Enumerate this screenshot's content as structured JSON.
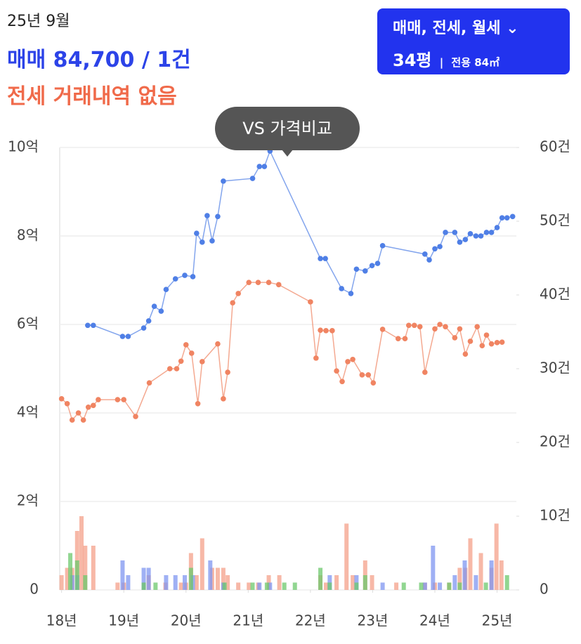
{
  "header": {
    "date": "25년 9월",
    "sale_summary": "매매 84,700 / 1건",
    "jeonse_summary": "전세 거래내역 없음"
  },
  "filter_button": {
    "types": "매매, 전세, 월세",
    "size": "34평",
    "exclusive_area": "전용 84㎡"
  },
  "tooltip": "VS 가격비교",
  "chart_data": {
    "type": "line",
    "xlim": [
      2017.97,
      2025.31
    ],
    "xticks": [
      {
        "value": 2018,
        "label": "18년"
      },
      {
        "value": 2019,
        "label": "19년"
      },
      {
        "value": 2020,
        "label": "20년"
      },
      {
        "value": 2021,
        "label": "21년"
      },
      {
        "value": 2022,
        "label": "22년"
      },
      {
        "value": 2023,
        "label": "23년"
      },
      {
        "value": 2024,
        "label": "24년"
      },
      {
        "value": 2025,
        "label": "25년"
      }
    ],
    "ylim": [
      0,
      10
    ],
    "yticks": [
      0,
      {
        "value": 2,
        "label": "2억"
      },
      {
        "value": 4,
        "label": "4억"
      },
      {
        "value": 6,
        "label": "6억"
      },
      {
        "value": 8,
        "label": "8억"
      },
      {
        "value": 10,
        "label": "10억"
      }
    ],
    "y2lim": [
      0,
      60
    ],
    "y2ticks": [
      0,
      {
        "value": 10,
        "label": "10건"
      },
      {
        "value": 20,
        "label": "20건"
      },
      {
        "value": 30,
        "label": "30건"
      },
      {
        "value": 40,
        "label": "40건"
      },
      {
        "value": 50,
        "label": "50건"
      },
      {
        "value": 60,
        "label": "60건"
      }
    ],
    "grid": true,
    "series": [
      {
        "type": "line",
        "color": "#4f7fe6",
        "x": [
          2018.42,
          2018.51,
          2018.98,
          2019.07,
          2019.32,
          2019.4,
          2019.49,
          2019.6,
          2019.68,
          2019.83,
          2019.98,
          2020.11,
          2020.17,
          2020.26,
          2020.34,
          2020.42,
          2020.51,
          2020.6,
          2021.07,
          2021.18,
          2021.26,
          2021.35,
          2022.16,
          2022.24,
          2022.5,
          2022.65,
          2022.74,
          2022.88,
          2022.99,
          2023.08,
          2023.16,
          2023.84,
          2023.91,
          2024.0,
          2024.08,
          2024.17,
          2024.32,
          2024.4,
          2024.49,
          2024.57,
          2024.66,
          2024.74,
          2024.83,
          2024.91,
          2025.0,
          2025.08,
          2025.16,
          2025.25
        ],
        "values": [
          5.98,
          5.98,
          5.73,
          5.73,
          5.92,
          6.08,
          6.41,
          6.3,
          6.79,
          7.03,
          7.11,
          7.08,
          8.06,
          7.86,
          8.46,
          7.89,
          8.44,
          9.24,
          9.3,
          9.57,
          9.57,
          9.92,
          7.49,
          7.49,
          6.81,
          6.7,
          7.25,
          7.21,
          7.33,
          7.38,
          7.78,
          7.59,
          7.46,
          7.71,
          7.76,
          8.08,
          8.08,
          7.86,
          7.92,
          8.05,
          8.0,
          8.0,
          8.08,
          8.08,
          8.19,
          8.41,
          8.41,
          8.44
        ]
      },
      {
        "type": "line",
        "color": "#f08462",
        "x": [
          2018.0,
          2018.09,
          2018.17,
          2018.27,
          2018.35,
          2018.43,
          2018.51,
          2018.59,
          2018.9,
          2019.0,
          2019.19,
          2019.41,
          2019.74,
          2019.85,
          2019.92,
          2020.0,
          2020.09,
          2020.19,
          2020.26,
          2020.51,
          2020.6,
          2020.67,
          2020.75,
          2020.84,
          2021.01,
          2021.16,
          2021.33,
          2021.49,
          2022.0,
          2022.09,
          2022.16,
          2022.25,
          2022.35,
          2022.42,
          2022.51,
          2022.6,
          2022.68,
          2022.83,
          2022.93,
          2023.01,
          2023.16,
          2023.41,
          2023.52,
          2023.58,
          2023.67,
          2023.76,
          2023.84,
          2024.0,
          2024.08,
          2024.17,
          2024.32,
          2024.4,
          2024.49,
          2024.57,
          2024.68,
          2024.76,
          2024.83,
          2024.91,
          2025.0,
          2025.08
        ],
        "values": [
          4.32,
          4.21,
          3.84,
          4.0,
          3.84,
          4.13,
          4.17,
          4.3,
          4.3,
          4.3,
          3.92,
          4.68,
          5.0,
          5.0,
          5.17,
          5.54,
          5.35,
          4.21,
          5.16,
          5.56,
          4.32,
          4.92,
          6.49,
          6.7,
          6.95,
          6.95,
          6.95,
          6.9,
          6.51,
          5.24,
          5.87,
          5.86,
          5.86,
          4.95,
          4.71,
          5.16,
          5.21,
          4.86,
          4.86,
          4.68,
          5.89,
          5.68,
          5.68,
          5.98,
          5.98,
          5.95,
          4.92,
          5.9,
          6.0,
          5.95,
          5.7,
          5.9,
          5.33,
          5.62,
          5.95,
          5.52,
          5.76,
          5.56,
          5.59,
          5.6
        ]
      },
      {
        "type": "bar",
        "axis": "y2",
        "color": "#f4a08a",
        "x": [
          2018.0,
          2018.09,
          2018.17,
          2018.25,
          2018.32,
          2018.38,
          2018.51,
          2018.9,
          2019.0,
          2019.32,
          2019.4,
          2019.67,
          2019.92,
          2020.0,
          2020.08,
          2020.17,
          2020.26,
          2020.42,
          2020.51,
          2020.6,
          2020.67,
          2020.84,
          2021.01,
          2021.16,
          2021.33,
          2021.5,
          2022.16,
          2022.25,
          2022.42,
          2022.58,
          2022.68,
          2022.88,
          2022.99,
          2023.38,
          2023.84,
          2024.0,
          2024.23,
          2024.4,
          2024.49,
          2024.57,
          2024.74,
          2024.91,
          2024.99,
          2025.07
        ],
        "values": [
          2,
          3,
          3,
          8,
          10,
          6,
          6,
          1,
          1,
          1,
          2,
          1,
          1,
          1,
          5,
          2,
          7,
          3,
          3,
          3,
          2,
          1,
          1,
          1,
          2,
          2,
          2,
          1,
          2,
          9,
          2,
          4,
          2,
          1,
          1,
          1,
          1,
          3,
          3,
          7,
          5,
          3,
          9,
          4
        ]
      },
      {
        "type": "bar",
        "axis": "y2",
        "color": "#7f95f0",
        "x": [
          2018.17,
          2018.25,
          2018.98,
          2019.07,
          2019.32,
          2019.4,
          2019.68,
          2019.83,
          2019.98,
          2020.11,
          2020.39,
          2020.6,
          2021.18,
          2021.35,
          2022.31,
          2022.74,
          2023.16,
          2023.84,
          2023.97,
          2024.08,
          2024.32,
          2024.48,
          2024.66,
          2024.91
        ],
        "values": [
          2,
          2,
          4,
          2,
          3,
          3,
          2,
          2,
          2,
          2,
          4,
          1,
          1,
          1,
          2,
          2,
          1,
          1,
          6,
          1,
          2,
          4,
          2,
          4
        ]
      },
      {
        "type": "bar",
        "axis": "y2",
        "color": "#6cc86c",
        "x": [
          2018.14,
          2018.25,
          2018.38,
          2019.32,
          2019.51,
          2020.08,
          2020.62,
          2021.07,
          2021.3,
          2021.58,
          2021.75,
          2022.16,
          2022.31,
          2022.74,
          2022.88,
          2023.5,
          2023.78,
          2024.23,
          2024.4,
          2024.82,
          2025.16
        ],
        "values": [
          5,
          4,
          2,
          1,
          1,
          3,
          1,
          1,
          1,
          1,
          1,
          3,
          1,
          1,
          2,
          1,
          1,
          1,
          1,
          1,
          2
        ]
      }
    ]
  }
}
